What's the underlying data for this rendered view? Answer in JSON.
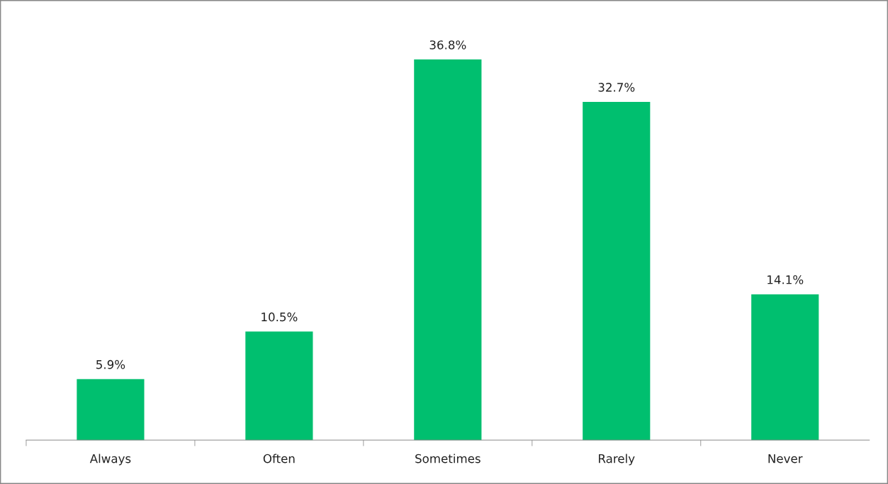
{
  "chart_data": {
    "type": "bar",
    "categories": [
      "Always",
      "Often",
      "Sometimes",
      "Rarely",
      "Never"
    ],
    "values": [
      5.9,
      10.5,
      36.8,
      32.7,
      14.1
    ],
    "value_labels": [
      "5.9%",
      "10.5%",
      "36.8%",
      "32.7%",
      "14.1%"
    ],
    "color": "#00bf6f",
    "grid": false,
    "legend": false
  }
}
